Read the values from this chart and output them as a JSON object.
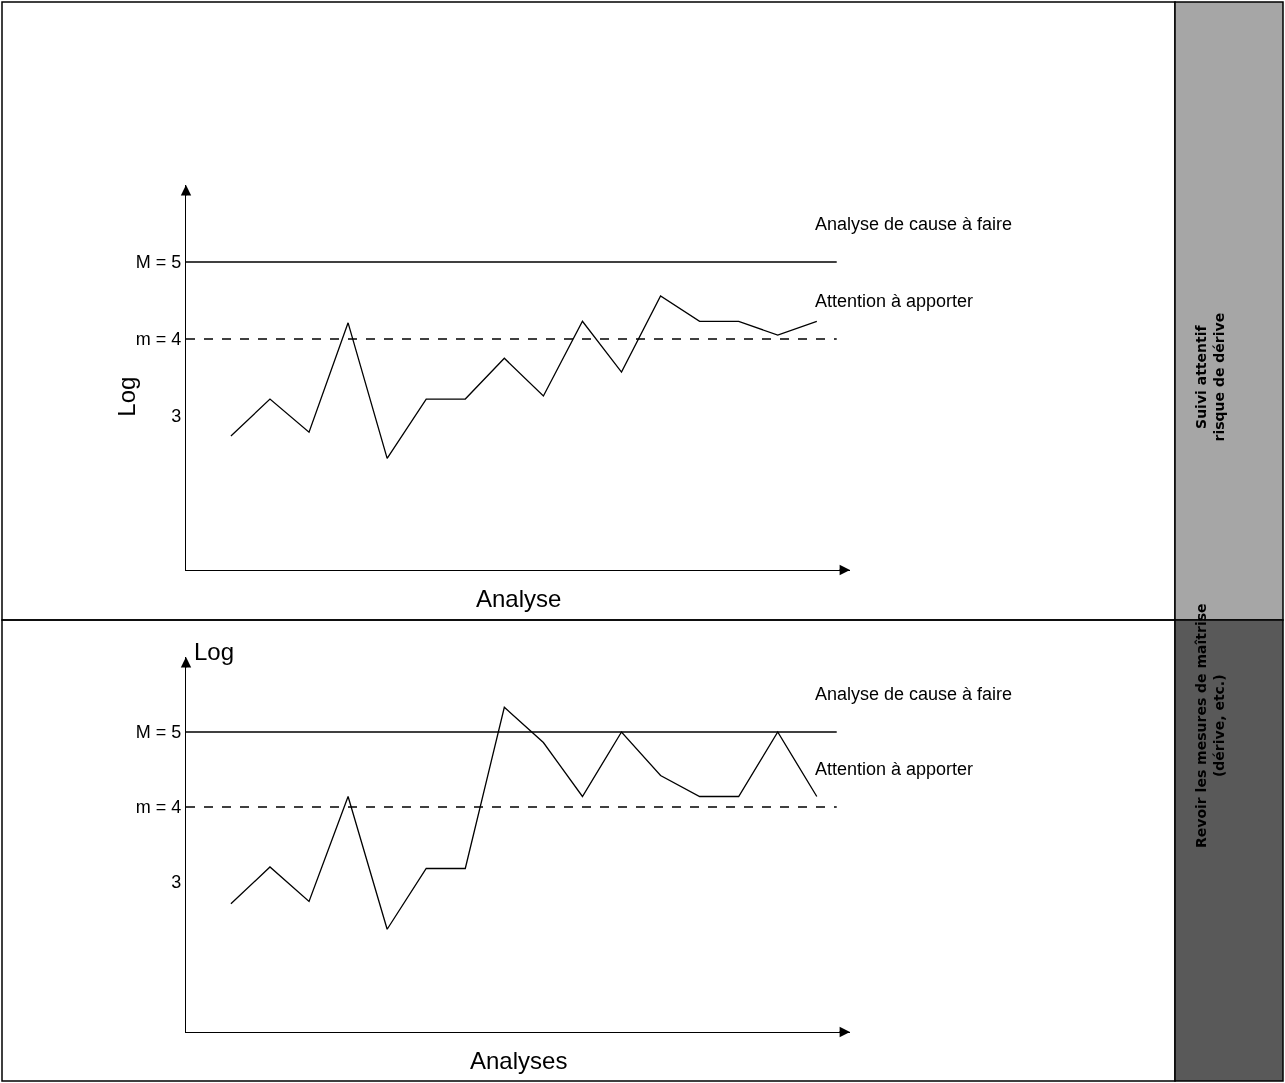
{
  "chart_data": [
    {
      "type": "line",
      "ylabel": "Log",
      "xlabel": "Analyse",
      "tick_labels": "y",
      "ylim": [
        1,
        6
      ],
      "categories": [
        null,
        null,
        null,
        null,
        null,
        null,
        null,
        null,
        null,
        null,
        null,
        null,
        null,
        null,
        null,
        null
      ],
      "yticks": [
        {
          "value": 3,
          "label": "3"
        },
        {
          "value": 4,
          "label": "m = 4"
        },
        {
          "value": 5,
          "label": "M = 5"
        }
      ],
      "marker": "none",
      "line_style": "solid",
      "series": [
        {
          "color": "#000000",
          "values": [
            2.74,
            3.22,
            2.79,
            4.21,
            2.45,
            3.22,
            3.22,
            3.75,
            3.26,
            4.23,
            3.57,
            4.56,
            4.23,
            4.23,
            4.05,
            4.23
          ]
        }
      ],
      "ref_lines": [
        {
          "axis": "y",
          "value": 5,
          "label": "Analyse de cause à faire",
          "color": "#000000",
          "line_style": "solid"
        },
        {
          "axis": "y",
          "value": 4,
          "label": "Attention à apporter",
          "color": "#000000",
          "line_style": "dashed"
        }
      ],
      "annotations": [
        "Suivi attentif\nrisque de dérive"
      ]
    },
    {
      "type": "line",
      "ylabel": "Log",
      "xlabel": "Analyses",
      "tick_labels": "y",
      "ylim": [
        1,
        6
      ],
      "categories": [
        null,
        null,
        null,
        null,
        null,
        null,
        null,
        null,
        null,
        null,
        null,
        null,
        null,
        null,
        null,
        null
      ],
      "yticks": [
        {
          "value": 3,
          "label": "3"
        },
        {
          "value": 4,
          "label": "m = 4"
        },
        {
          "value": 5,
          "label": "M = 5"
        }
      ],
      "marker": "none",
      "line_style": "solid",
      "series": [
        {
          "color": "#000000",
          "values": [
            2.71,
            3.2,
            2.74,
            4.14,
            2.37,
            3.18,
            3.18,
            5.33,
            4.86,
            4.14,
            5.0,
            4.42,
            4.14,
            4.14,
            5.0,
            4.14
          ]
        }
      ],
      "ref_lines": [
        {
          "axis": "y",
          "value": 5,
          "label": "Analyse de cause à faire",
          "color": "#000000",
          "line_style": "solid"
        },
        {
          "axis": "y",
          "value": 4,
          "label": "Attention à apporter",
          "color": "#000000",
          "line_style": "dashed"
        }
      ],
      "annotations": [
        "Revoir les mesures de maîtrise\n(dérive, etc.)"
      ]
    }
  ]
}
